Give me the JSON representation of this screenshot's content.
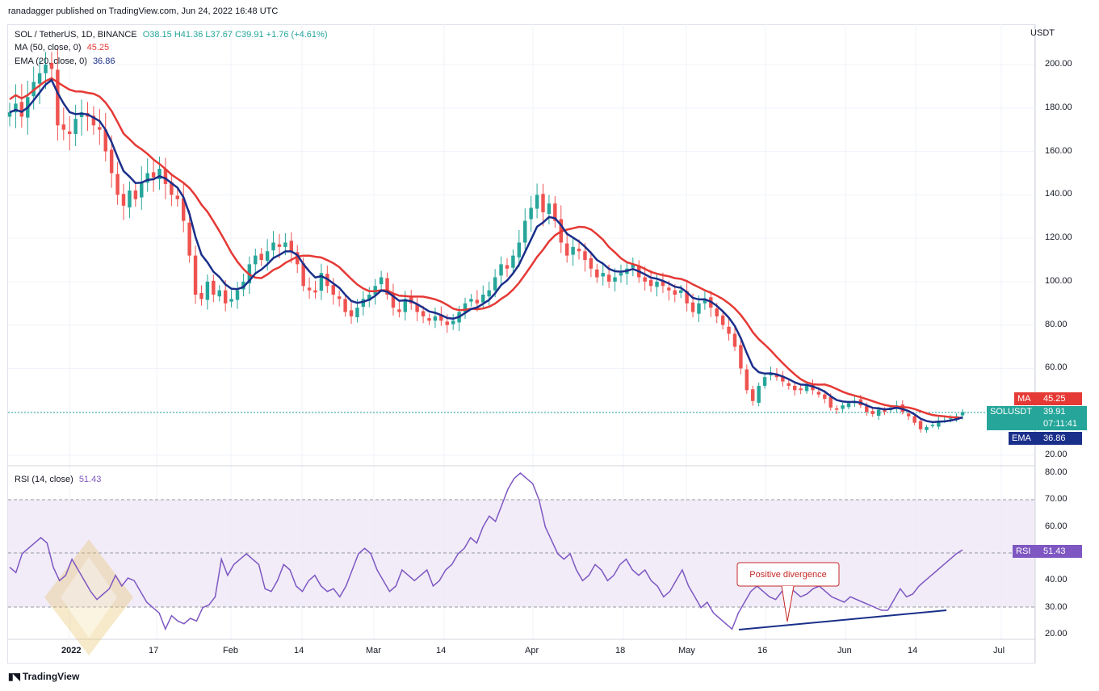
{
  "header": {
    "caption": "ranadagger published on TradingView.com, Jun 24, 2022 16:48 UTC"
  },
  "legend": {
    "symbol": "SOL / TetherUS, 1D, BINANCE",
    "o": "O38.15",
    "h": "H41.36",
    "l": "L37.67",
    "c": "C39.91",
    "chg": "+1.76 (+4.61%)",
    "ma_label": "MA (50, close, 0)",
    "ma_value": "45.25",
    "ema_label": "EMA (20, close, 0)",
    "ema_value": "36.86",
    "rsi_label": "RSI (14, close)",
    "rsi_value": "51.43"
  },
  "price_axis": {
    "unit": "USDT",
    "ticks": [
      "200.00",
      "180.00",
      "160.00",
      "140.00",
      "120.00",
      "100.00",
      "80.00",
      "60.00",
      "40.00",
      "20.00"
    ]
  },
  "rsi_axis": {
    "ticks": [
      "80.00",
      "70.00",
      "60.00",
      "50.00",
      "40.00",
      "30.00",
      "20.00"
    ]
  },
  "x_axis": {
    "ticks": [
      "2022",
      "17",
      "Feb",
      "14",
      "Mar",
      "14",
      "Apr",
      "18",
      "May",
      "16",
      "Jun",
      "14",
      "Jul"
    ]
  },
  "tags": {
    "ma_name": "MA",
    "ma_value": "45.25",
    "sym_name": "SOLUSDT",
    "sym_value": "39.91",
    "countdown": "07:11:41",
    "ema_name": "EMA",
    "ema_value": "36.86",
    "rsi_name": "RSI",
    "rsi_value": "51.43"
  },
  "annotation": {
    "text": "Positive divergence"
  },
  "footer": {
    "brand": "TradingView"
  },
  "colors": {
    "up": "#26a69a",
    "down": "#ef5350",
    "ma": "#e53935",
    "ema": "#1a2f8a",
    "rsi": "#7e57c2",
    "rsi_band": "#ede7f6"
  },
  "chart_data": [
    {
      "type": "candlestick",
      "title": "SOL / TetherUS, 1D, BINANCE",
      "ylabel": "USDT",
      "ylim": [
        15,
        210
      ],
      "x_ticks": [
        "2022",
        "17",
        "Feb",
        "14",
        "Mar",
        "14",
        "Apr",
        "18",
        "May",
        "16",
        "Jun",
        "14",
        "Jul"
      ],
      "close_series": [
        {
          "name": "SOL / TetherUS",
          "values": [
            178,
            182,
            176,
            185,
            192,
            196,
            200,
            198,
            172,
            170,
            168,
            175,
            178,
            176,
            172,
            170,
            160,
            150,
            140,
            135,
            142,
            138,
            146,
            150,
            148,
            152,
            145,
            140,
            138,
            128,
            112,
            94,
            92,
            100,
            94,
            96,
            90,
            92,
            96,
            100,
            108,
            112,
            110,
            114,
            118,
            116,
            118,
            114,
            108,
            98,
            96,
            95,
            104,
            98,
            94,
            92,
            86,
            84,
            88,
            92,
            94,
            98,
            102,
            94,
            88,
            86,
            92,
            90,
            86,
            84,
            82,
            84,
            82,
            80,
            82,
            86,
            90,
            92,
            90,
            94,
            96,
            102,
            108,
            106,
            112,
            118,
            128,
            134,
            140,
            132,
            136,
            128,
            118,
            112,
            116,
            114,
            110,
            106,
            102,
            104,
            100,
            102,
            104,
            106,
            108,
            102,
            100,
            98,
            100,
            98,
            96,
            94,
            96,
            90,
            86,
            90,
            92,
            88,
            84,
            80,
            76,
            70,
            60,
            50,
            45,
            52,
            56,
            58,
            56,
            54,
            52,
            50,
            50,
            52,
            50,
            48,
            46,
            42,
            41,
            43,
            44,
            45,
            43,
            40,
            39,
            41,
            40,
            42,
            43,
            40,
            38,
            35,
            32,
            33,
            34,
            36,
            36,
            37,
            38,
            39.91
          ]
        }
      ],
      "indicators": [
        {
          "name": "MA (50, close, 0)",
          "last": 45.25
        },
        {
          "name": "EMA (20, close, 0)",
          "last": 36.86
        }
      ],
      "last_price": 39.91
    },
    {
      "type": "line",
      "title": "RSI (14, close)",
      "ylim": [
        18,
        82
      ],
      "band": [
        30,
        70
      ],
      "series": [
        {
          "name": "RSI (14, close)",
          "values": [
            45,
            43,
            50,
            52,
            54,
            56,
            54,
            45,
            40,
            42,
            48,
            44,
            40,
            36,
            33,
            35,
            37,
            42,
            38,
            41,
            40,
            36,
            32,
            30,
            28,
            22,
            27,
            25,
            24,
            26,
            25,
            30,
            31,
            34,
            48,
            42,
            46,
            48,
            50,
            48,
            46,
            37,
            36,
            40,
            46,
            44,
            38,
            36,
            40,
            42,
            38,
            36,
            37,
            34,
            38,
            44,
            50,
            52,
            50,
            44,
            40,
            36,
            38,
            44,
            42,
            40,
            42,
            44,
            38,
            40,
            44,
            46,
            50,
            52,
            56,
            54,
            60,
            64,
            62,
            68,
            74,
            78,
            80,
            78,
            76,
            70,
            60,
            55,
            50,
            48,
            50,
            44,
            40,
            42,
            46,
            44,
            40,
            42,
            46,
            48,
            44,
            42,
            44,
            40,
            38,
            34,
            36,
            40,
            44,
            38,
            34,
            30,
            32,
            28,
            26,
            24,
            22,
            28,
            32,
            36,
            38,
            36,
            34,
            33,
            36,
            38,
            36,
            34,
            35,
            37,
            38,
            36,
            34,
            33,
            32,
            34,
            33,
            32,
            31,
            30,
            29,
            29,
            33,
            37,
            34,
            35,
            38,
            40,
            42,
            44,
            46,
            48,
            50,
            51.43
          ]
        }
      ]
    }
  ]
}
